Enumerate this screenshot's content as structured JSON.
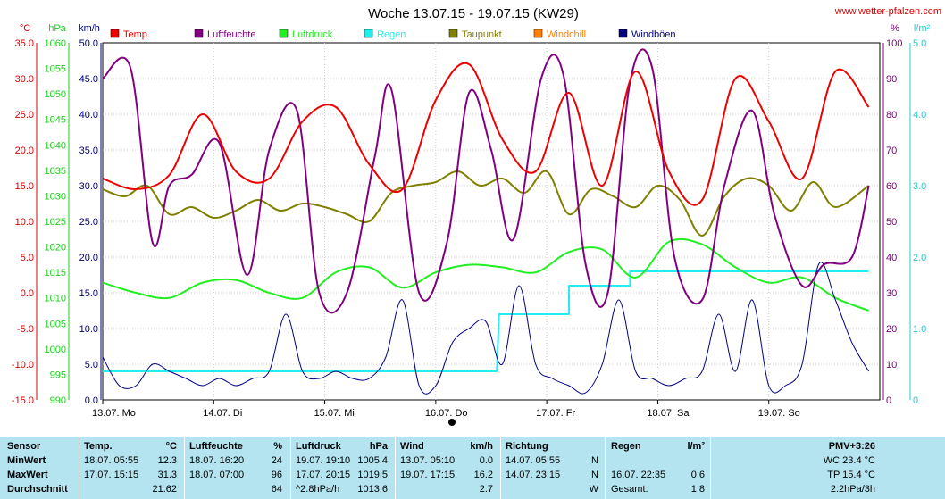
{
  "title": "Woche 13.07.15 - 19.07.15 (KW29)",
  "site": "www.wetter-pfalzen.com",
  "colors": {
    "temp": "#ee0000",
    "luftfeuchte": "#800080",
    "luftdruck": "#22ee22",
    "regen": "#22eeee",
    "taupunkt": "#808000",
    "windchill": "#ff8000",
    "windboeen": "#000080",
    "table_bg": "#b4e4ef"
  },
  "chart_data": {
    "type": "line",
    "x_categories": [
      "13.07. Mo",
      "14.07. Di",
      "15.07. Mi",
      "16.07. Do",
      "17.07. Fr",
      "18.07. Sa",
      "19.07. So"
    ],
    "axes": {
      "temp_c": {
        "label": "°C",
        "range": [
          -15,
          35
        ],
        "ticks": [
          "35.0",
          "30.0",
          "25.0",
          "20.0",
          "15.0",
          "10.0",
          "5.0",
          "0.0",
          "-5.0",
          "-10.0",
          "-15.0"
        ]
      },
      "pressure_hpa": {
        "label": "hPa",
        "range": [
          990,
          1060
        ],
        "ticks": [
          "1060",
          "1055",
          "1050",
          "1045",
          "1040",
          "1035",
          "1030",
          "1025",
          "1020",
          "1015",
          "1010",
          "1005",
          "1000",
          "995",
          "990"
        ]
      },
      "wind_kmh": {
        "label": "km/h",
        "range": [
          0,
          50
        ],
        "ticks": [
          "50.0",
          "45.0",
          "40.0",
          "35.0",
          "30.0",
          "25.0",
          "20.0",
          "15.0",
          "10.0",
          "5.0",
          "0.0"
        ]
      },
      "humidity_pct": {
        "label": "%",
        "range": [
          0,
          100
        ],
        "ticks": [
          "100",
          "90",
          "80",
          "70",
          "60",
          "50",
          "40",
          "30",
          "20",
          "10",
          "0"
        ]
      },
      "rain_lm2": {
        "label": "l/m²",
        "range": [
          0,
          5
        ],
        "ticks": [
          "5.0",
          "4.0",
          "3.0",
          "2.0",
          "1.0",
          "0"
        ]
      }
    },
    "legend": [
      "Temp.",
      "Luftfeuchte",
      "Luftdruck",
      "Regen",
      "Taupunkt",
      "Windchill",
      "Windböen"
    ],
    "series": [
      {
        "name": "Temp.",
        "axis": "temp_c",
        "x": [
          0,
          0.3,
          0.6,
          0.9,
          1.2,
          1.5,
          1.8,
          2.1,
          2.4,
          2.7,
          3.0,
          3.3,
          3.6,
          3.9,
          4.2,
          4.5,
          4.8,
          5.1,
          5.4,
          5.7,
          6.0,
          6.3,
          6.6,
          6.9
        ],
        "y": [
          16,
          14.5,
          16.5,
          25,
          17,
          16,
          24,
          26,
          18,
          14.5,
          27,
          32,
          21.5,
          17,
          28,
          15,
          31,
          17,
          13,
          30,
          24,
          16,
          31,
          26
        ]
      },
      {
        "name": "Luftfeuchte",
        "axis": "humidity_pct",
        "x": [
          0,
          0.25,
          0.45,
          0.6,
          0.8,
          1.05,
          1.3,
          1.5,
          1.75,
          1.95,
          2.2,
          2.45,
          2.6,
          2.85,
          3.1,
          3.3,
          3.5,
          3.7,
          3.95,
          4.15,
          4.35,
          4.55,
          4.75,
          4.95,
          5.15,
          5.4,
          5.6,
          5.85,
          6.05,
          6.3,
          6.5,
          6.75,
          6.9
        ],
        "y": [
          90,
          93,
          44,
          60,
          63,
          72,
          35,
          70,
          81,
          30,
          30,
          68,
          87,
          30,
          44,
          86,
          70,
          45,
          90,
          91,
          38,
          30,
          89,
          93,
          40,
          28,
          60,
          81,
          52,
          32,
          38,
          40,
          60
        ]
      },
      {
        "name": "Luftdruck",
        "axis": "pressure_hpa",
        "x": [
          0,
          0.3,
          0.6,
          0.9,
          1.2,
          1.5,
          1.8,
          2.1,
          2.4,
          2.7,
          3.0,
          3.3,
          3.6,
          3.9,
          4.2,
          4.5,
          4.8,
          5.1,
          5.4,
          5.7,
          6.0,
          6.3,
          6.6,
          6.9
        ],
        "y": [
          1013,
          1011,
          1010,
          1013,
          1013.5,
          1011,
          1010,
          1015,
          1016,
          1012,
          1015,
          1016.5,
          1016,
          1015,
          1019,
          1019.5,
          1014,
          1021,
          1020.5,
          1016,
          1013,
          1014,
          1010,
          1007.5
        ]
      },
      {
        "name": "Regen",
        "axis": "rain_lm2",
        "x": [
          0,
          3.55,
          3.57,
          4.2,
          4.2,
          4.75,
          4.75,
          5.3,
          5.3,
          6.9
        ],
        "y": [
          0.4,
          0.4,
          1.2,
          1.2,
          1.6,
          1.6,
          1.8,
          1.8,
          1.8,
          1.8
        ]
      },
      {
        "name": "Taupunkt",
        "axis": "temp_c",
        "x": [
          0,
          0.2,
          0.4,
          0.6,
          0.8,
          1.0,
          1.2,
          1.4,
          1.6,
          1.8,
          2.0,
          2.2,
          2.4,
          2.6,
          2.8,
          3.0,
          3.2,
          3.4,
          3.6,
          3.8,
          4.0,
          4.2,
          4.4,
          4.6,
          4.8,
          5.0,
          5.2,
          5.4,
          5.6,
          5.8,
          6.0,
          6.2,
          6.4,
          6.6,
          6.9
        ],
        "y": [
          14.5,
          13.5,
          15,
          11,
          12,
          10.5,
          11.5,
          13,
          11.5,
          12.5,
          12,
          11,
          10,
          14,
          15,
          15.5,
          17,
          15,
          16,
          14,
          17,
          11,
          14.5,
          13.5,
          12,
          15,
          13,
          8,
          13.5,
          16,
          15,
          11.5,
          15.5,
          12,
          15
        ]
      },
      {
        "name": "Windböen",
        "axis": "wind_kmh",
        "x": [
          0,
          0.15,
          0.3,
          0.45,
          0.6,
          0.75,
          0.9,
          1.05,
          1.2,
          1.35,
          1.5,
          1.65,
          1.8,
          1.95,
          2.1,
          2.25,
          2.4,
          2.55,
          2.7,
          2.85,
          3.0,
          3.15,
          3.3,
          3.45,
          3.6,
          3.75,
          3.9,
          4.05,
          4.2,
          4.35,
          4.5,
          4.65,
          4.8,
          4.95,
          5.1,
          5.25,
          5.4,
          5.55,
          5.7,
          5.85,
          6.0,
          6.15,
          6.3,
          6.45,
          6.6,
          6.75,
          6.9
        ],
        "y": [
          6,
          2,
          2,
          5,
          4,
          3,
          2,
          3,
          2,
          3,
          4,
          12,
          4,
          3,
          4,
          3,
          3,
          6,
          14,
          2,
          2,
          8,
          10,
          11,
          5,
          16,
          5,
          3,
          2,
          1,
          5,
          14,
          4,
          3,
          2,
          3,
          4,
          12,
          4,
          14,
          2,
          2,
          5,
          19,
          14,
          8,
          4
        ]
      }
    ]
  },
  "table": {
    "headers": {
      "sensor": "Sensor",
      "temp": "Temp.",
      "temp_unit": "°C",
      "hum": "Luftfeuchte",
      "hum_unit": "%",
      "press": "Luftdruck",
      "press_unit": "hPa",
      "wind": "Wind",
      "wind_unit": "km/h",
      "dir": "Richtung",
      "rain": "Regen",
      "rain_unit": "l/m²",
      "pmv": "PMV+3:26"
    },
    "rows": [
      {
        "label": "MinWert",
        "temp_t": "18.07.  05:55",
        "temp_v": "12.3",
        "hum_t": "18.07.  16:20",
        "hum_v": "24",
        "press_t": "19.07.  19:10",
        "press_v": "1005.4",
        "wind_t": "13.07.  05:10",
        "wind_v": "0.0",
        "dir_t": "14.07.  05:55",
        "dir_v": "N",
        "rain_t": "",
        "rain_v": "",
        "pmv": "WC 23.4 °C"
      },
      {
        "label": "MaxWert",
        "temp_t": "17.07.  15:15",
        "temp_v": "31.3",
        "hum_t": "18.07.  07:00",
        "hum_v": "96",
        "press_t": "17.07.  20:15",
        "press_v": "1019.5",
        "wind_t": "19.07.  17:15",
        "wind_v": "16.2",
        "dir_t": "14.07.  23:15",
        "dir_v": "N",
        "rain_t": "16.07.  22:35",
        "rain_v": "0.6",
        "pmv": "TP 15.4 °C"
      },
      {
        "label": "Durchschnitt",
        "temp_t": "",
        "temp_v": "21.62",
        "hum_t": "",
        "hum_v": "64",
        "press_t": "^2.8hPa/h",
        "press_v": "1013.6",
        "wind_t": "",
        "wind_v": "2.7",
        "dir_t": "",
        "dir_v": "W",
        "rain_t": "Gesamt:",
        "rain_v": "1.8",
        "pmv": "2.2hPa/3h"
      }
    ]
  }
}
